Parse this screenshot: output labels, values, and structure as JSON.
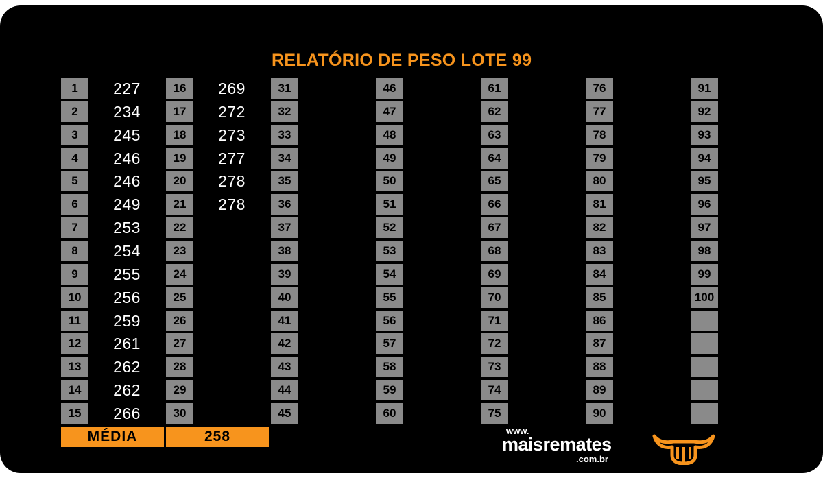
{
  "report": {
    "title": "RELATÓRIO DE PESO LOTE  99",
    "weights": [
      227,
      234,
      245,
      246,
      246,
      249,
      253,
      254,
      255,
      256,
      259,
      261,
      262,
      262,
      266,
      269,
      272,
      273,
      277,
      278,
      278
    ],
    "grid": {
      "rows": 15,
      "numbered_slots": 100,
      "columns_with_weights": 2
    },
    "average_label": "MÉDIA",
    "average_value": "258"
  },
  "brand": {
    "www": "www.",
    "name": "maisremates",
    "tld": ".com.br",
    "logo_icon": "bull-horns-icon"
  },
  "colors": {
    "background": "#000000",
    "accent": "#f7941d",
    "number_box": "#8a8a8a",
    "text": "#ffffff"
  }
}
